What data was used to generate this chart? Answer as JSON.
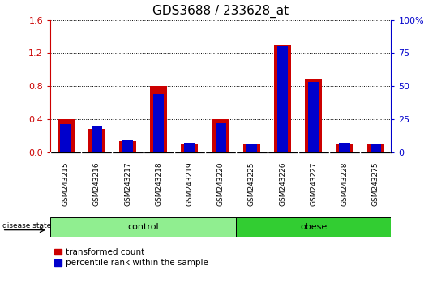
{
  "title": "GDS3688 / 233628_at",
  "samples": [
    "GSM243215",
    "GSM243216",
    "GSM243217",
    "GSM243218",
    "GSM243219",
    "GSM243220",
    "GSM243225",
    "GSM243226",
    "GSM243227",
    "GSM243228",
    "GSM243275"
  ],
  "transformed_count": [
    0.4,
    0.28,
    0.13,
    0.8,
    0.1,
    0.4,
    0.09,
    1.3,
    0.88,
    0.1,
    0.09
  ],
  "percentile_rank_pct": [
    21,
    20,
    9,
    44,
    7,
    22,
    6,
    80,
    53,
    7,
    6
  ],
  "groups": [
    {
      "label": "control",
      "start": 0,
      "end": 6,
      "color": "#90EE90"
    },
    {
      "label": "obese",
      "start": 6,
      "end": 11,
      "color": "#32CD32"
    }
  ],
  "ylim_left": [
    0,
    1.6
  ],
  "ylim_right": [
    0,
    100
  ],
  "yticks_left": [
    0,
    0.4,
    0.8,
    1.2,
    1.6
  ],
  "yticks_right": [
    0,
    25,
    50,
    75,
    100
  ],
  "bar_color_red": "#CC0000",
  "bar_color_blue": "#0000CC",
  "bar_width": 0.55,
  "blue_bar_width": 0.35,
  "title_fontsize": 11,
  "axis_color_left": "#CC0000",
  "axis_color_right": "#0000CC",
  "grid_color": "black",
  "xtick_bg_color": "#D3D3D3",
  "plot_bg": "white"
}
